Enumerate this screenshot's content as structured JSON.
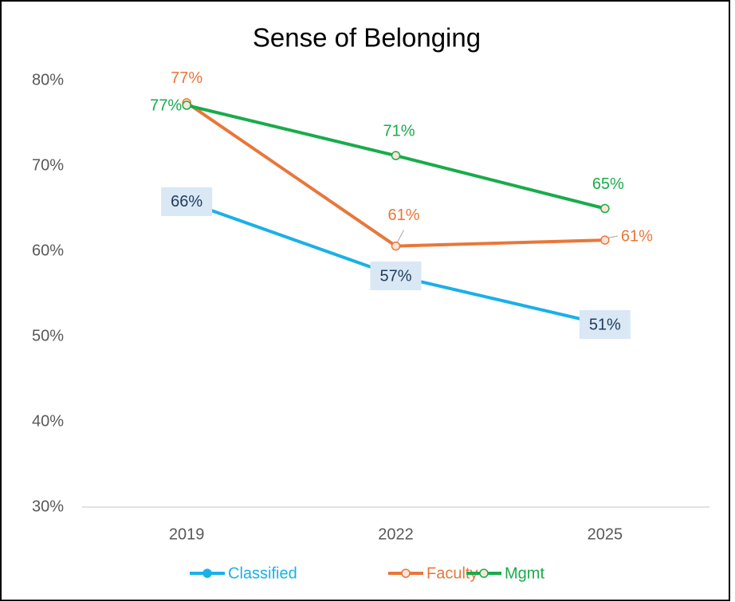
{
  "chart_data": {
    "type": "line",
    "title": "Sense of Belonging",
    "categories": [
      "2019",
      "2022",
      "2025"
    ],
    "series": [
      {
        "name": "Classified",
        "color": "#1ab0e8",
        "values": [
          65.8,
          57.1,
          51.4
        ],
        "value_labels": [
          "66%",
          "57%",
          "51%"
        ]
      },
      {
        "name": "Faculty",
        "color": "#e8773a",
        "values": [
          77.4,
          60.6,
          61.3
        ],
        "value_labels": [
          "77%",
          "61%",
          "61%"
        ]
      },
      {
        "name": "Mgmt",
        "color": "#1aab4b",
        "values": [
          77.1,
          71.2,
          65.0
        ],
        "value_labels": [
          "77%",
          "71%",
          "65%"
        ]
      }
    ],
    "ylim": [
      30,
      80
    ],
    "yticks": [
      {
        "value": 30,
        "label": "30%"
      },
      {
        "value": 40,
        "label": "40%"
      },
      {
        "value": 50,
        "label": "50%"
      },
      {
        "value": 60,
        "label": "60%"
      },
      {
        "value": 70,
        "label": "70%"
      },
      {
        "value": 80,
        "label": "80%"
      }
    ],
    "grid": false,
    "legend": "bottom"
  }
}
